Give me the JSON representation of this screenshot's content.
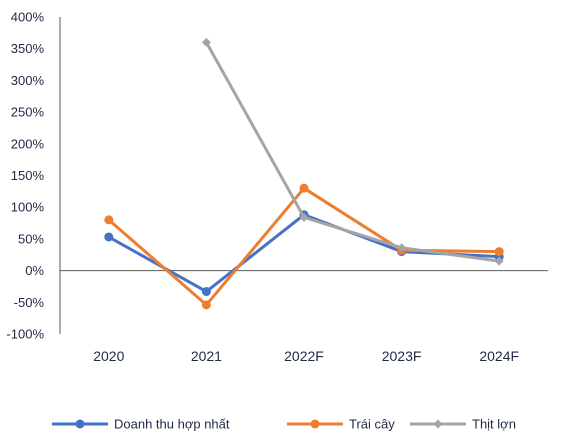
{
  "chart_data": {
    "type": "line",
    "title": "",
    "xlabel": "",
    "ylabel": "",
    "categories": [
      "2020",
      "2021",
      "2022F",
      "2023F",
      "2024F"
    ],
    "ylim": [
      -100,
      400
    ],
    "yticks": [
      -100,
      -50,
      0,
      50,
      100,
      150,
      200,
      250,
      300,
      350,
      400
    ],
    "ytick_labels": [
      "-100%",
      "-50%",
      "0%",
      "50%",
      "100%",
      "150%",
      "200%",
      "250%",
      "300%",
      "350%",
      "400%"
    ],
    "grid": false,
    "legend": "bottom",
    "series": [
      {
        "name": "Doanh thu hợp nhất",
        "color": "#4472C4",
        "marker": "circle",
        "values": [
          53,
          -33,
          88,
          30,
          22
        ]
      },
      {
        "name": "Trái cây",
        "color": "#ED7D31",
        "marker": "circle",
        "values": [
          80,
          -54,
          130,
          32,
          30
        ]
      },
      {
        "name": "Thịt lợn",
        "color": "#A5A5A5",
        "marker": "diamond",
        "values": [
          null,
          360,
          84,
          36,
          15
        ]
      }
    ]
  }
}
